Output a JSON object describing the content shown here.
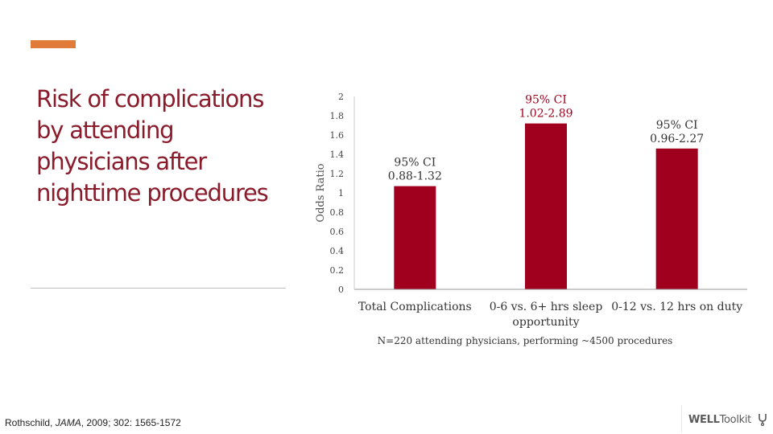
{
  "slide": {
    "title": "Risk of complications by attending physicians after nighttime procedures",
    "citation_author": "Rothschild, ",
    "citation_journal": "JAMA",
    "citation_rest": ", 2009; 302: 1565-1572",
    "accent_color": "#e07b39",
    "title_color": "#8a1b2b"
  },
  "logo": {
    "bold_text": "WELL",
    "rest_text": "Toolkit",
    "mark_icon": "stethoscope-icon"
  },
  "chart_data": {
    "type": "bar",
    "categories": [
      [
        "Total Complications"
      ],
      [
        "0-6 vs. 6+ hrs sleep",
        "opportunity"
      ],
      [
        "0-12 vs. 12 hrs on duty"
      ]
    ],
    "values": [
      1.07,
      1.72,
      1.46
    ],
    "annotations": [
      [
        "95% CI",
        "0.88-1.32"
      ],
      [
        "95% CI",
        "1.02-2.89"
      ],
      [
        "95% CI",
        "0.96-2.27"
      ]
    ],
    "annotation_colors": [
      "#333333",
      "#a0001e",
      "#333333"
    ],
    "ylabel": "Odds Ratio",
    "xlabel": "N=220 attending physicians, performing ~4500 procedures",
    "ylim": [
      0,
      2
    ],
    "yticks": [
      "0",
      "0.2",
      "0.4",
      "0.6",
      "0.8",
      "1",
      "1.2",
      "1.4",
      "1.6",
      "1.8",
      "2"
    ],
    "bar_color": "#a0001e",
    "grid": false,
    "legend": "none"
  }
}
